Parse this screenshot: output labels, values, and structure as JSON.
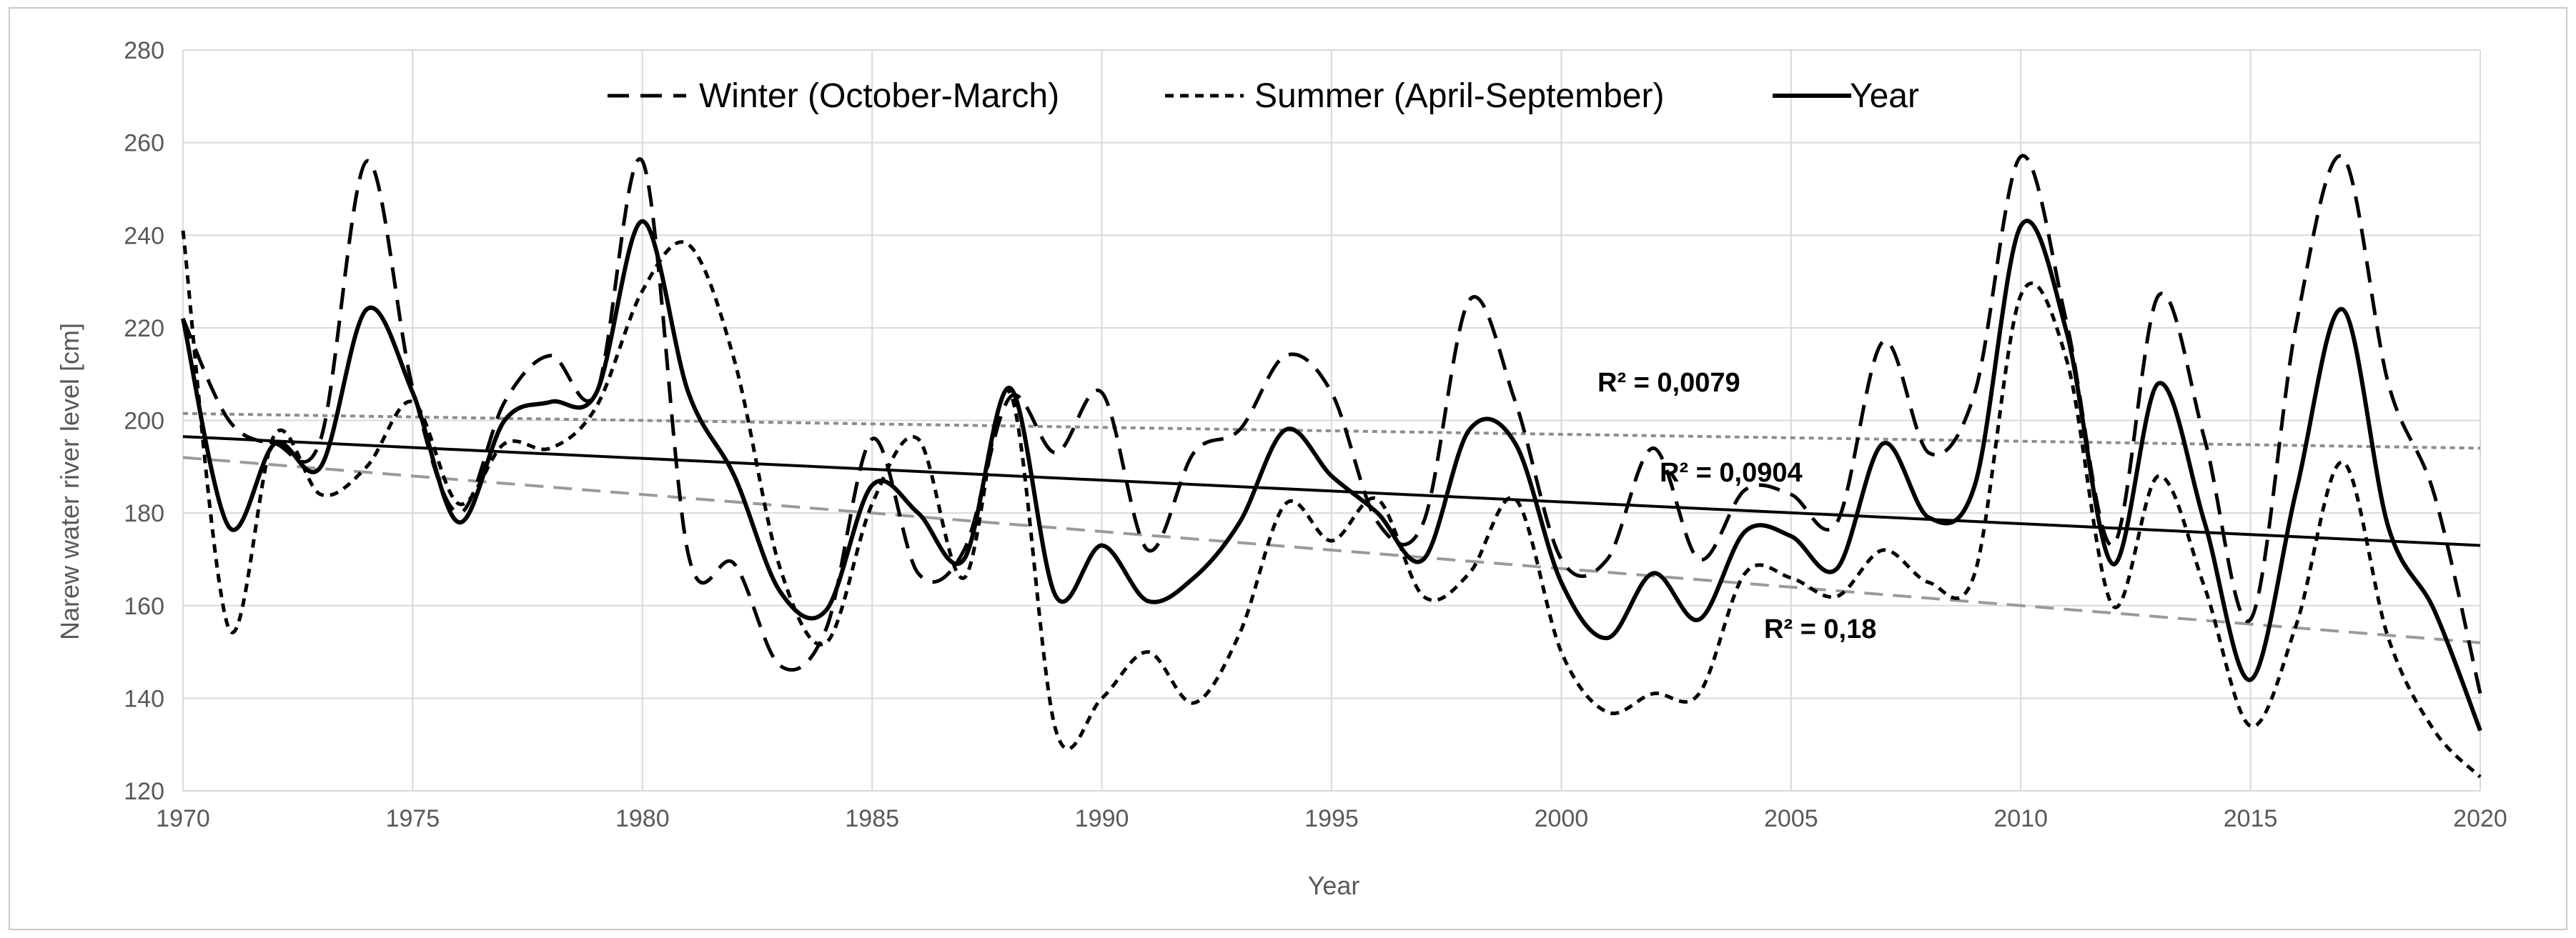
{
  "chart_data": {
    "type": "line",
    "title": "",
    "xlabel": "Year",
    "ylabel": "Narew water river level [cm]",
    "xlim": [
      1970,
      2020
    ],
    "ylim": [
      120,
      280
    ],
    "x_ticks": [
      "1970",
      "1975",
      "1980",
      "1985",
      "1990",
      "1995",
      "2000",
      "2005",
      "2010",
      "2015",
      "2020"
    ],
    "y_ticks": [
      "120",
      "140",
      "160",
      "180",
      "200",
      "220",
      "240",
      "260",
      "280"
    ],
    "grid": true,
    "legend_position": "top-center",
    "x": [
      1970,
      1971,
      1972,
      1973,
      1974,
      1975,
      1976,
      1977,
      1978,
      1979,
      1980,
      1981,
      1982,
      1983,
      1984,
      1985,
      1986,
      1987,
      1988,
      1989,
      1990,
      1991,
      1992,
      1993,
      1994,
      1995,
      1996,
      1997,
      1998,
      1999,
      2000,
      2001,
      2002,
      2003,
      2004,
      2005,
      2006,
      2007,
      2008,
      2009,
      2010,
      2011,
      2012,
      2013,
      2014,
      2015,
      2016,
      2017,
      2018,
      2019,
      2020
    ],
    "series": [
      {
        "name": "Winter (October-March)",
        "style": "long-dash",
        "color": "#000000",
        "values": [
          222,
          200,
          195,
          196,
          256,
          207,
          180,
          204,
          214,
          206,
          256,
          171,
          169,
          147,
          155,
          196,
          167,
          172,
          205,
          193,
          206,
          172,
          193,
          198,
          214,
          206,
          178,
          178,
          226,
          204,
          170,
          170,
          194,
          170,
          185,
          184,
          178,
          217,
          193,
          206,
          257,
          221,
          173,
          227,
          196,
          157,
          221,
          257,
          208,
          184,
          141
        ]
      },
      {
        "name": "Summer (April-September)",
        "style": "short-dash",
        "color": "#000000",
        "values": [
          241,
          155,
          197,
          184,
          190,
          204,
          182,
          195,
          194,
          203,
          228,
          238,
          213,
          168,
          152,
          182,
          196,
          166,
          206,
          133,
          140,
          150,
          139,
          154,
          182,
          174,
          183,
          162,
          167,
          183,
          150,
          137,
          141,
          141,
          167,
          166,
          162,
          172,
          165,
          167,
          227,
          213,
          160,
          188,
          164,
          134,
          156,
          191,
          153,
          133,
          123
        ]
      },
      {
        "name": "Year",
        "style": "solid",
        "color": "#000000",
        "values": [
          222,
          177,
          195,
          190,
          224,
          206,
          178,
          200,
          204,
          206,
          243,
          206,
          188,
          163,
          159,
          186,
          180,
          170,
          207,
          162,
          173,
          161,
          166,
          178,
          198,
          188,
          180,
          170,
          198,
          195,
          165,
          153,
          167,
          157,
          176,
          175,
          168,
          195,
          179,
          186,
          242,
          219,
          169,
          208,
          178,
          144,
          185,
          224,
          177,
          159,
          133
        ]
      }
    ],
    "trendlines": [
      {
        "series": "Summer (April-September)",
        "label": "R² = 0,0079",
        "color": "#8c8c8c",
        "style": "dotted",
        "start": [
          1970,
          201.5
        ],
        "end": [
          2020,
          194.0
        ]
      },
      {
        "series": "Year",
        "label": "R² = 0,0904",
        "color": "#000000",
        "style": "solid",
        "start": [
          1970,
          196.5
        ],
        "end": [
          2020,
          173.0
        ]
      },
      {
        "series": "Winter (October-March)",
        "label": "R² = 0,18",
        "color": "#9a9a9a",
        "style": "dashed",
        "start": [
          1970,
          192.0
        ],
        "end": [
          2020,
          152.0
        ]
      }
    ]
  }
}
